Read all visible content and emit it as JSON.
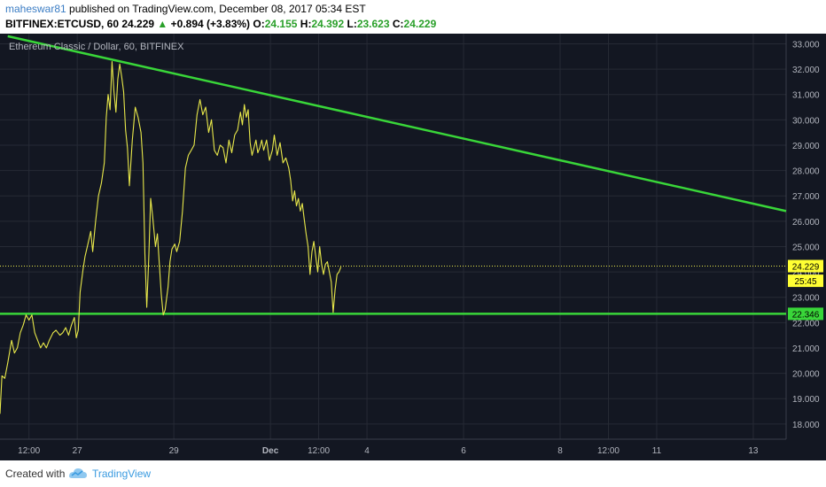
{
  "header": {
    "username": "maheswar81",
    "published": " published on TradingView.com, December 08, 2017 05:34 EST",
    "symbol": "BITFINEX:ETCUSD, 60",
    "last": "24.229",
    "up_arrow": "▲",
    "change": "+0.894 (+3.83%)",
    "o_label": "O:",
    "o_value": "24.155",
    "h_label": "H:",
    "h_value": "24.392",
    "l_label": "L:",
    "l_value": "23.623",
    "c_label": "C:",
    "c_value": "24.229"
  },
  "footer": {
    "created_with": "Created with",
    "brand": "TradingView",
    "logo_icon": "tradingview-cloud-icon"
  },
  "colors": {
    "background": "#131722",
    "grid": "#262a35",
    "price_line": "#e8e84a",
    "trendline": "#39d639",
    "axis_text": "#b2b5be",
    "label_yellow": "#ffff33",
    "label_green": "#39d639"
  },
  "chart_data": {
    "type": "line",
    "title": "Ethereum Classic / Dollar, 60, BITFINEX",
    "ylim": [
      17.4,
      33.4
    ],
    "y_ticks": [
      18,
      19,
      20,
      21,
      22,
      23,
      24,
      25,
      26,
      27,
      28,
      29,
      30,
      31,
      32,
      33
    ],
    "x_ticks": [
      {
        "label": "12:00",
        "day": 0
      },
      {
        "label": "27",
        "day": 0.5
      },
      {
        "label": "29",
        "day": 1.5
      },
      {
        "label": "Dec",
        "day": 2.5
      },
      {
        "label": "12:00",
        "day": 3.0
      },
      {
        "label": "4",
        "day": 3.5
      },
      {
        "label": "6",
        "day": 4.5
      },
      {
        "label": "8",
        "day": 5.5
      },
      {
        "label": "12:00",
        "day": 6.0
      },
      {
        "label": "11",
        "day": 6.5
      },
      {
        "label": "13",
        "day": 7.5
      }
    ],
    "xlim": [
      -0.3,
      7.84
    ],
    "series": [
      {
        "values": [
          [
            -0.3,
            18.4
          ],
          [
            -0.28,
            19.9
          ],
          [
            -0.25,
            19.8
          ],
          [
            -0.22,
            20.4
          ],
          [
            -0.18,
            21.3
          ],
          [
            -0.15,
            20.8
          ],
          [
            -0.12,
            21.0
          ],
          [
            -0.09,
            21.6
          ],
          [
            -0.06,
            21.9
          ],
          [
            -0.03,
            22.3
          ],
          [
            0.0,
            22.1
          ],
          [
            0.03,
            22.3
          ],
          [
            0.06,
            21.6
          ],
          [
            0.09,
            21.3
          ],
          [
            0.12,
            21.0
          ],
          [
            0.15,
            21.2
          ],
          [
            0.18,
            21.0
          ],
          [
            0.21,
            21.3
          ],
          [
            0.25,
            21.6
          ],
          [
            0.28,
            21.7
          ],
          [
            0.32,
            21.5
          ],
          [
            0.35,
            21.6
          ],
          [
            0.38,
            21.8
          ],
          [
            0.41,
            21.5
          ],
          [
            0.44,
            21.9
          ],
          [
            0.47,
            22.2
          ],
          [
            0.49,
            21.4
          ],
          [
            0.51,
            21.7
          ],
          [
            0.53,
            23.2
          ],
          [
            0.56,
            24.1
          ],
          [
            0.58,
            24.6
          ],
          [
            0.61,
            25.1
          ],
          [
            0.64,
            25.6
          ],
          [
            0.66,
            24.8
          ],
          [
            0.69,
            26.0
          ],
          [
            0.72,
            27.0
          ],
          [
            0.75,
            27.5
          ],
          [
            0.78,
            28.3
          ],
          [
            0.8,
            30.1
          ],
          [
            0.82,
            31.0
          ],
          [
            0.84,
            30.4
          ],
          [
            0.86,
            32.3
          ],
          [
            0.88,
            31.1
          ],
          [
            0.9,
            30.3
          ],
          [
            0.92,
            31.6
          ],
          [
            0.94,
            32.2
          ],
          [
            0.96,
            31.7
          ],
          [
            0.98,
            31.1
          ],
          [
            1.0,
            29.6
          ],
          [
            1.02,
            28.9
          ],
          [
            1.04,
            27.4
          ],
          [
            1.07,
            29.2
          ],
          [
            1.1,
            30.5
          ],
          [
            1.13,
            30.1
          ],
          [
            1.16,
            29.5
          ],
          [
            1.18,
            28.3
          ],
          [
            1.2,
            24.7
          ],
          [
            1.22,
            22.6
          ],
          [
            1.24,
            24.5
          ],
          [
            1.26,
            26.9
          ],
          [
            1.28,
            26.2
          ],
          [
            1.31,
            25.0
          ],
          [
            1.33,
            25.5
          ],
          [
            1.35,
            24.3
          ],
          [
            1.37,
            23.1
          ],
          [
            1.39,
            22.3
          ],
          [
            1.41,
            22.5
          ],
          [
            1.44,
            23.4
          ],
          [
            1.46,
            24.4
          ],
          [
            1.48,
            24.9
          ],
          [
            1.51,
            25.1
          ],
          [
            1.53,
            24.8
          ],
          [
            1.56,
            25.2
          ],
          [
            1.59,
            26.4
          ],
          [
            1.62,
            28.1
          ],
          [
            1.65,
            28.6
          ],
          [
            1.68,
            28.8
          ],
          [
            1.71,
            29.0
          ],
          [
            1.74,
            30.2
          ],
          [
            1.77,
            30.8
          ],
          [
            1.8,
            30.2
          ],
          [
            1.83,
            30.5
          ],
          [
            1.86,
            29.5
          ],
          [
            1.89,
            30.0
          ],
          [
            1.92,
            28.8
          ],
          [
            1.95,
            28.6
          ],
          [
            1.98,
            29.0
          ],
          [
            2.01,
            28.9
          ],
          [
            2.04,
            28.3
          ],
          [
            2.07,
            29.2
          ],
          [
            2.1,
            28.7
          ],
          [
            2.13,
            29.4
          ],
          [
            2.16,
            29.6
          ],
          [
            2.19,
            30.3
          ],
          [
            2.21,
            29.8
          ],
          [
            2.23,
            30.6
          ],
          [
            2.25,
            30.1
          ],
          [
            2.27,
            30.4
          ],
          [
            2.29,
            29.1
          ],
          [
            2.31,
            28.6
          ],
          [
            2.33,
            28.9
          ],
          [
            2.35,
            29.2
          ],
          [
            2.37,
            28.7
          ],
          [
            2.39,
            28.9
          ],
          [
            2.41,
            29.2
          ],
          [
            2.43,
            28.8
          ],
          [
            2.46,
            29.2
          ],
          [
            2.49,
            28.4
          ],
          [
            2.52,
            28.8
          ],
          [
            2.54,
            29.4
          ],
          [
            2.57,
            28.6
          ],
          [
            2.6,
            29.1
          ],
          [
            2.63,
            28.3
          ],
          [
            2.66,
            28.5
          ],
          [
            2.69,
            28.1
          ],
          [
            2.71,
            27.6
          ],
          [
            2.73,
            26.8
          ],
          [
            2.75,
            27.2
          ],
          [
            2.77,
            26.6
          ],
          [
            2.79,
            26.9
          ],
          [
            2.81,
            26.4
          ],
          [
            2.83,
            26.7
          ],
          [
            2.85,
            26.1
          ],
          [
            2.87,
            25.5
          ],
          [
            2.89,
            25.0
          ],
          [
            2.91,
            23.9
          ],
          [
            2.93,
            24.8
          ],
          [
            2.95,
            25.2
          ],
          [
            2.97,
            24.6
          ],
          [
            2.99,
            24.0
          ],
          [
            3.01,
            25.0
          ],
          [
            3.03,
            24.3
          ],
          [
            3.05,
            23.9
          ],
          [
            3.07,
            24.3
          ],
          [
            3.09,
            24.4
          ],
          [
            3.11,
            24.0
          ],
          [
            3.13,
            23.6
          ],
          [
            3.15,
            22.4
          ],
          [
            3.17,
            23.3
          ],
          [
            3.19,
            23.9
          ],
          [
            3.21,
            24.0
          ],
          [
            3.23,
            24.2
          ]
        ]
      }
    ],
    "trendlines": [
      {
        "from": [
          -0.22,
          33.3
        ],
        "to": [
          7.84,
          26.4
        ]
      },
      {
        "from": [
          -0.3,
          22.346
        ],
        "to": [
          7.84,
          22.346
        ]
      }
    ],
    "price_markers": [
      {
        "label": "24.229",
        "value": 24.229,
        "style": "yellow"
      },
      {
        "label": "25:45",
        "value": 23.65,
        "style": "yellow"
      },
      {
        "label": "22.346",
        "value": 22.346,
        "style": "green"
      }
    ]
  }
}
